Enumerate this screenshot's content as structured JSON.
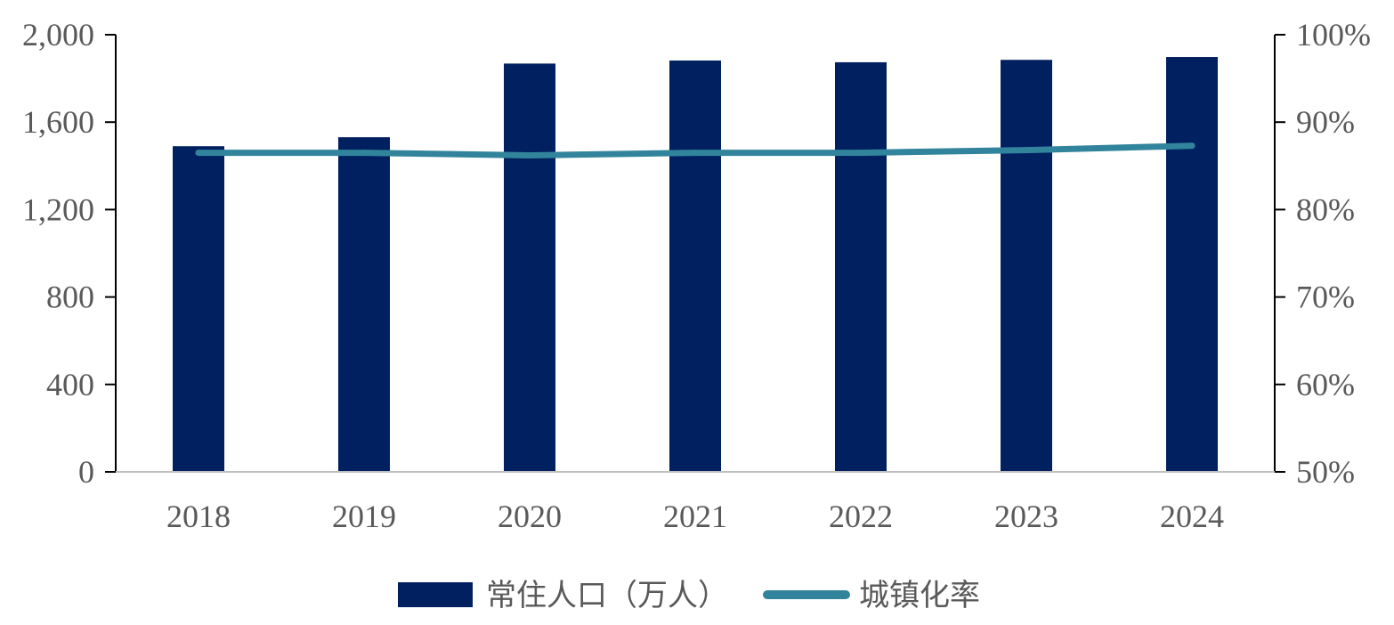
{
  "chart_data": {
    "type": "bar",
    "title": "",
    "categories": [
      "2018",
      "2019",
      "2020",
      "2021",
      "2022",
      "2023",
      "2024"
    ],
    "series": [
      {
        "name": "常住人口（万人）",
        "type": "bar",
        "axis": "left",
        "color": "#002060",
        "values": [
          1490,
          1531,
          1868,
          1882,
          1874,
          1885,
          1898
        ]
      },
      {
        "name": "城镇化率",
        "type": "line",
        "axis": "right",
        "color": "#31849B",
        "values": [
          86.5,
          86.5,
          86.2,
          86.5,
          86.5,
          86.8,
          87.3
        ]
      }
    ],
    "y_left": {
      "min": 0,
      "max": 2000,
      "ticks": [
        0,
        400,
        800,
        1200,
        1600,
        2000
      ],
      "tick_labels": [
        "0",
        "400",
        "800",
        "1,200",
        "1,600",
        "2,000"
      ]
    },
    "y_right": {
      "min": 50,
      "max": 100,
      "ticks": [
        50,
        60,
        70,
        80,
        90,
        100
      ],
      "tick_labels": [
        "50%",
        "60%",
        "70%",
        "80%",
        "90%",
        "100%"
      ]
    },
    "xlabel": "",
    "ylabel": "",
    "grid": false,
    "legend": {
      "position": "bottom-center",
      "entries": [
        "常住人口（万人）",
        "城镇化率"
      ]
    }
  }
}
